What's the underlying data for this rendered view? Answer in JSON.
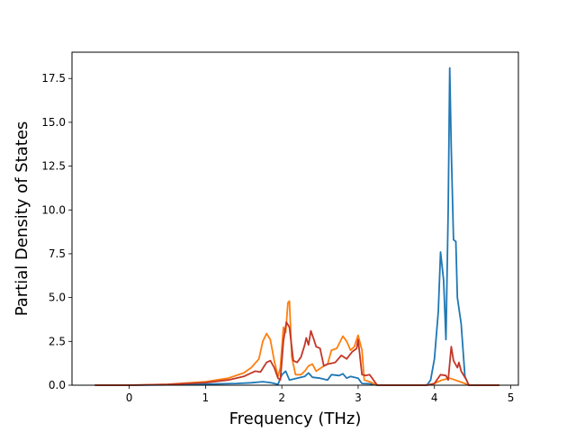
{
  "chart_data": {
    "type": "line",
    "title": "",
    "xlabel": "Frequency (THz)",
    "ylabel": "Partial Density of States",
    "xlim": [
      -0.75,
      5.1
    ],
    "ylim": [
      0,
      19
    ],
    "xticks": [
      0,
      1,
      2,
      3,
      4,
      5
    ],
    "xtick_labels": [
      "0",
      "1",
      "2",
      "3",
      "4",
      "5"
    ],
    "yticks": [
      0,
      2.5,
      5,
      7.5,
      10,
      12.5,
      15,
      17.5
    ],
    "ytick_labels": [
      "0.0",
      "2.5",
      "5.0",
      "7.5",
      "10.0",
      "12.5",
      "15.0",
      "17.5"
    ],
    "grid": false,
    "legend": "none",
    "series": [
      {
        "color": "#1f77b4",
        "points": [
          [
            -0.45,
            0
          ],
          [
            0,
            0
          ],
          [
            0.5,
            0.02
          ],
          [
            1.0,
            0.06
          ],
          [
            1.4,
            0.1
          ],
          [
            1.6,
            0.14
          ],
          [
            1.75,
            0.2
          ],
          [
            1.85,
            0.15
          ],
          [
            1.95,
            0.05
          ],
          [
            2.0,
            0.6
          ],
          [
            2.05,
            0.8
          ],
          [
            2.1,
            0.3
          ],
          [
            2.2,
            0.4
          ],
          [
            2.3,
            0.5
          ],
          [
            2.35,
            0.7
          ],
          [
            2.4,
            0.45
          ],
          [
            2.5,
            0.4
          ],
          [
            2.6,
            0.3
          ],
          [
            2.65,
            0.6
          ],
          [
            2.75,
            0.55
          ],
          [
            2.8,
            0.65
          ],
          [
            2.85,
            0.4
          ],
          [
            2.9,
            0.5
          ],
          [
            3.0,
            0.4
          ],
          [
            3.05,
            0.1
          ],
          [
            3.15,
            0.08
          ],
          [
            3.25,
            0
          ],
          [
            3.5,
            0
          ],
          [
            3.9,
            0
          ],
          [
            3.95,
            0.3
          ],
          [
            4.0,
            1.5
          ],
          [
            4.05,
            4.2
          ],
          [
            4.08,
            7.6
          ],
          [
            4.12,
            6.0
          ],
          [
            4.15,
            2.6
          ],
          [
            4.18,
            10.0
          ],
          [
            4.2,
            18.1
          ],
          [
            4.22,
            13.5
          ],
          [
            4.25,
            8.3
          ],
          [
            4.28,
            8.2
          ],
          [
            4.3,
            5.0
          ],
          [
            4.35,
            3.5
          ],
          [
            4.4,
            0.5
          ],
          [
            4.45,
            0
          ],
          [
            4.85,
            0
          ]
        ]
      },
      {
        "color": "#ff7f0e",
        "points": [
          [
            -0.45,
            0
          ],
          [
            0,
            0
          ],
          [
            0.5,
            0.05
          ],
          [
            1.0,
            0.2
          ],
          [
            1.3,
            0.4
          ],
          [
            1.5,
            0.7
          ],
          [
            1.6,
            1.0
          ],
          [
            1.7,
            1.5
          ],
          [
            1.75,
            2.5
          ],
          [
            1.8,
            2.95
          ],
          [
            1.85,
            2.6
          ],
          [
            1.9,
            1.4
          ],
          [
            1.95,
            0.5
          ],
          [
            1.98,
            1.0
          ],
          [
            2.02,
            3.3
          ],
          [
            2.05,
            3.0
          ],
          [
            2.08,
            4.7
          ],
          [
            2.1,
            4.8
          ],
          [
            2.13,
            1.6
          ],
          [
            2.18,
            0.6
          ],
          [
            2.25,
            0.6
          ],
          [
            2.3,
            0.8
          ],
          [
            2.35,
            1.1
          ],
          [
            2.4,
            1.2
          ],
          [
            2.45,
            0.8
          ],
          [
            2.55,
            1.1
          ],
          [
            2.6,
            1.2
          ],
          [
            2.65,
            2.0
          ],
          [
            2.72,
            2.1
          ],
          [
            2.8,
            2.8
          ],
          [
            2.85,
            2.5
          ],
          [
            2.9,
            2.0
          ],
          [
            2.95,
            2.2
          ],
          [
            3.0,
            2.85
          ],
          [
            3.05,
            2.0
          ],
          [
            3.08,
            0.3
          ],
          [
            3.15,
            0.2
          ],
          [
            3.25,
            0
          ],
          [
            3.9,
            0
          ],
          [
            4.0,
            0.1
          ],
          [
            4.1,
            0.3
          ],
          [
            4.2,
            0.4
          ],
          [
            4.3,
            0.25
          ],
          [
            4.4,
            0.1
          ],
          [
            4.45,
            0
          ],
          [
            4.85,
            0
          ]
        ]
      },
      {
        "color": "#c23728",
        "points": [
          [
            -0.45,
            0
          ],
          [
            0,
            0
          ],
          [
            0.5,
            0.04
          ],
          [
            1.0,
            0.15
          ],
          [
            1.3,
            0.3
          ],
          [
            1.5,
            0.5
          ],
          [
            1.65,
            0.8
          ],
          [
            1.72,
            0.75
          ],
          [
            1.8,
            1.3
          ],
          [
            1.85,
            1.4
          ],
          [
            1.9,
            1.0
          ],
          [
            1.95,
            0.4
          ],
          [
            1.98,
            0.3
          ],
          [
            2.02,
            2.5
          ],
          [
            2.06,
            3.6
          ],
          [
            2.1,
            3.3
          ],
          [
            2.15,
            1.4
          ],
          [
            2.2,
            1.3
          ],
          [
            2.25,
            1.6
          ],
          [
            2.3,
            2.3
          ],
          [
            2.32,
            2.7
          ],
          [
            2.35,
            2.3
          ],
          [
            2.38,
            3.1
          ],
          [
            2.42,
            2.6
          ],
          [
            2.45,
            2.2
          ],
          [
            2.5,
            2.1
          ],
          [
            2.55,
            1.1
          ],
          [
            2.6,
            1.2
          ],
          [
            2.7,
            1.3
          ],
          [
            2.78,
            1.7
          ],
          [
            2.85,
            1.5
          ],
          [
            2.92,
            1.9
          ],
          [
            2.98,
            2.1
          ],
          [
            3.0,
            2.6
          ],
          [
            3.05,
            0.6
          ],
          [
            3.1,
            0.55
          ],
          [
            3.15,
            0.6
          ],
          [
            3.25,
            0
          ],
          [
            3.9,
            0
          ],
          [
            4.0,
            0.1
          ],
          [
            4.08,
            0.6
          ],
          [
            4.15,
            0.55
          ],
          [
            4.18,
            0.3
          ],
          [
            4.22,
            2.2
          ],
          [
            4.25,
            1.4
          ],
          [
            4.3,
            1.0
          ],
          [
            4.32,
            1.3
          ],
          [
            4.35,
            0.8
          ],
          [
            4.42,
            0.3
          ],
          [
            4.45,
            0
          ],
          [
            4.85,
            0
          ]
        ]
      }
    ]
  }
}
